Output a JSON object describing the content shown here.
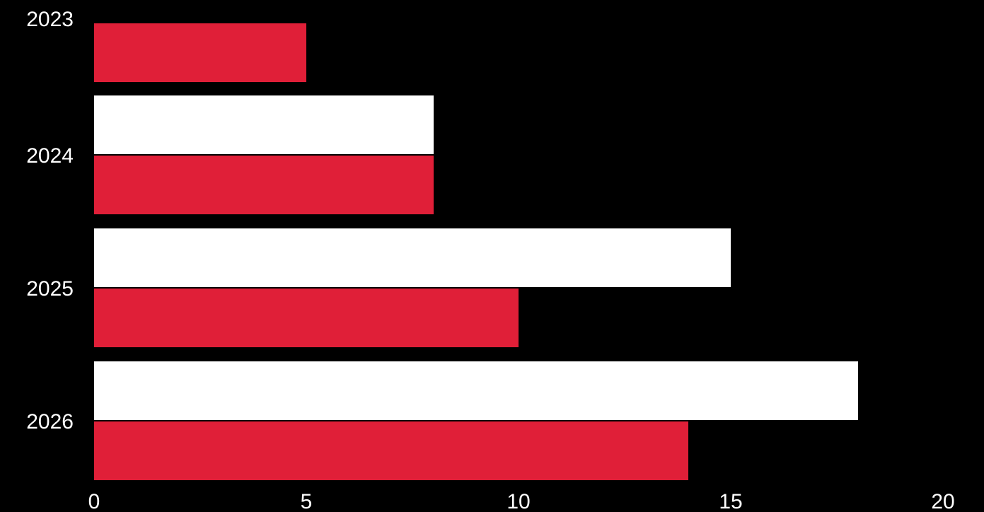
{
  "chart_data": {
    "type": "bar",
    "orientation": "horizontal",
    "categories": [
      "2023",
      "2024",
      "2025",
      "2026"
    ],
    "series": [
      {
        "color": "#ffffff",
        "values": [
          null,
          8,
          15,
          18
        ]
      },
      {
        "color": "#e01f38",
        "values": [
          5,
          8,
          10,
          14
        ]
      }
    ],
    "x_ticks": [
      "0",
      "5",
      "10",
      "15",
      "20"
    ],
    "xlim": [
      0,
      20
    ],
    "title": "",
    "xlabel": "",
    "ylabel": "",
    "grid": false,
    "legend": "none",
    "background": "#000000"
  }
}
